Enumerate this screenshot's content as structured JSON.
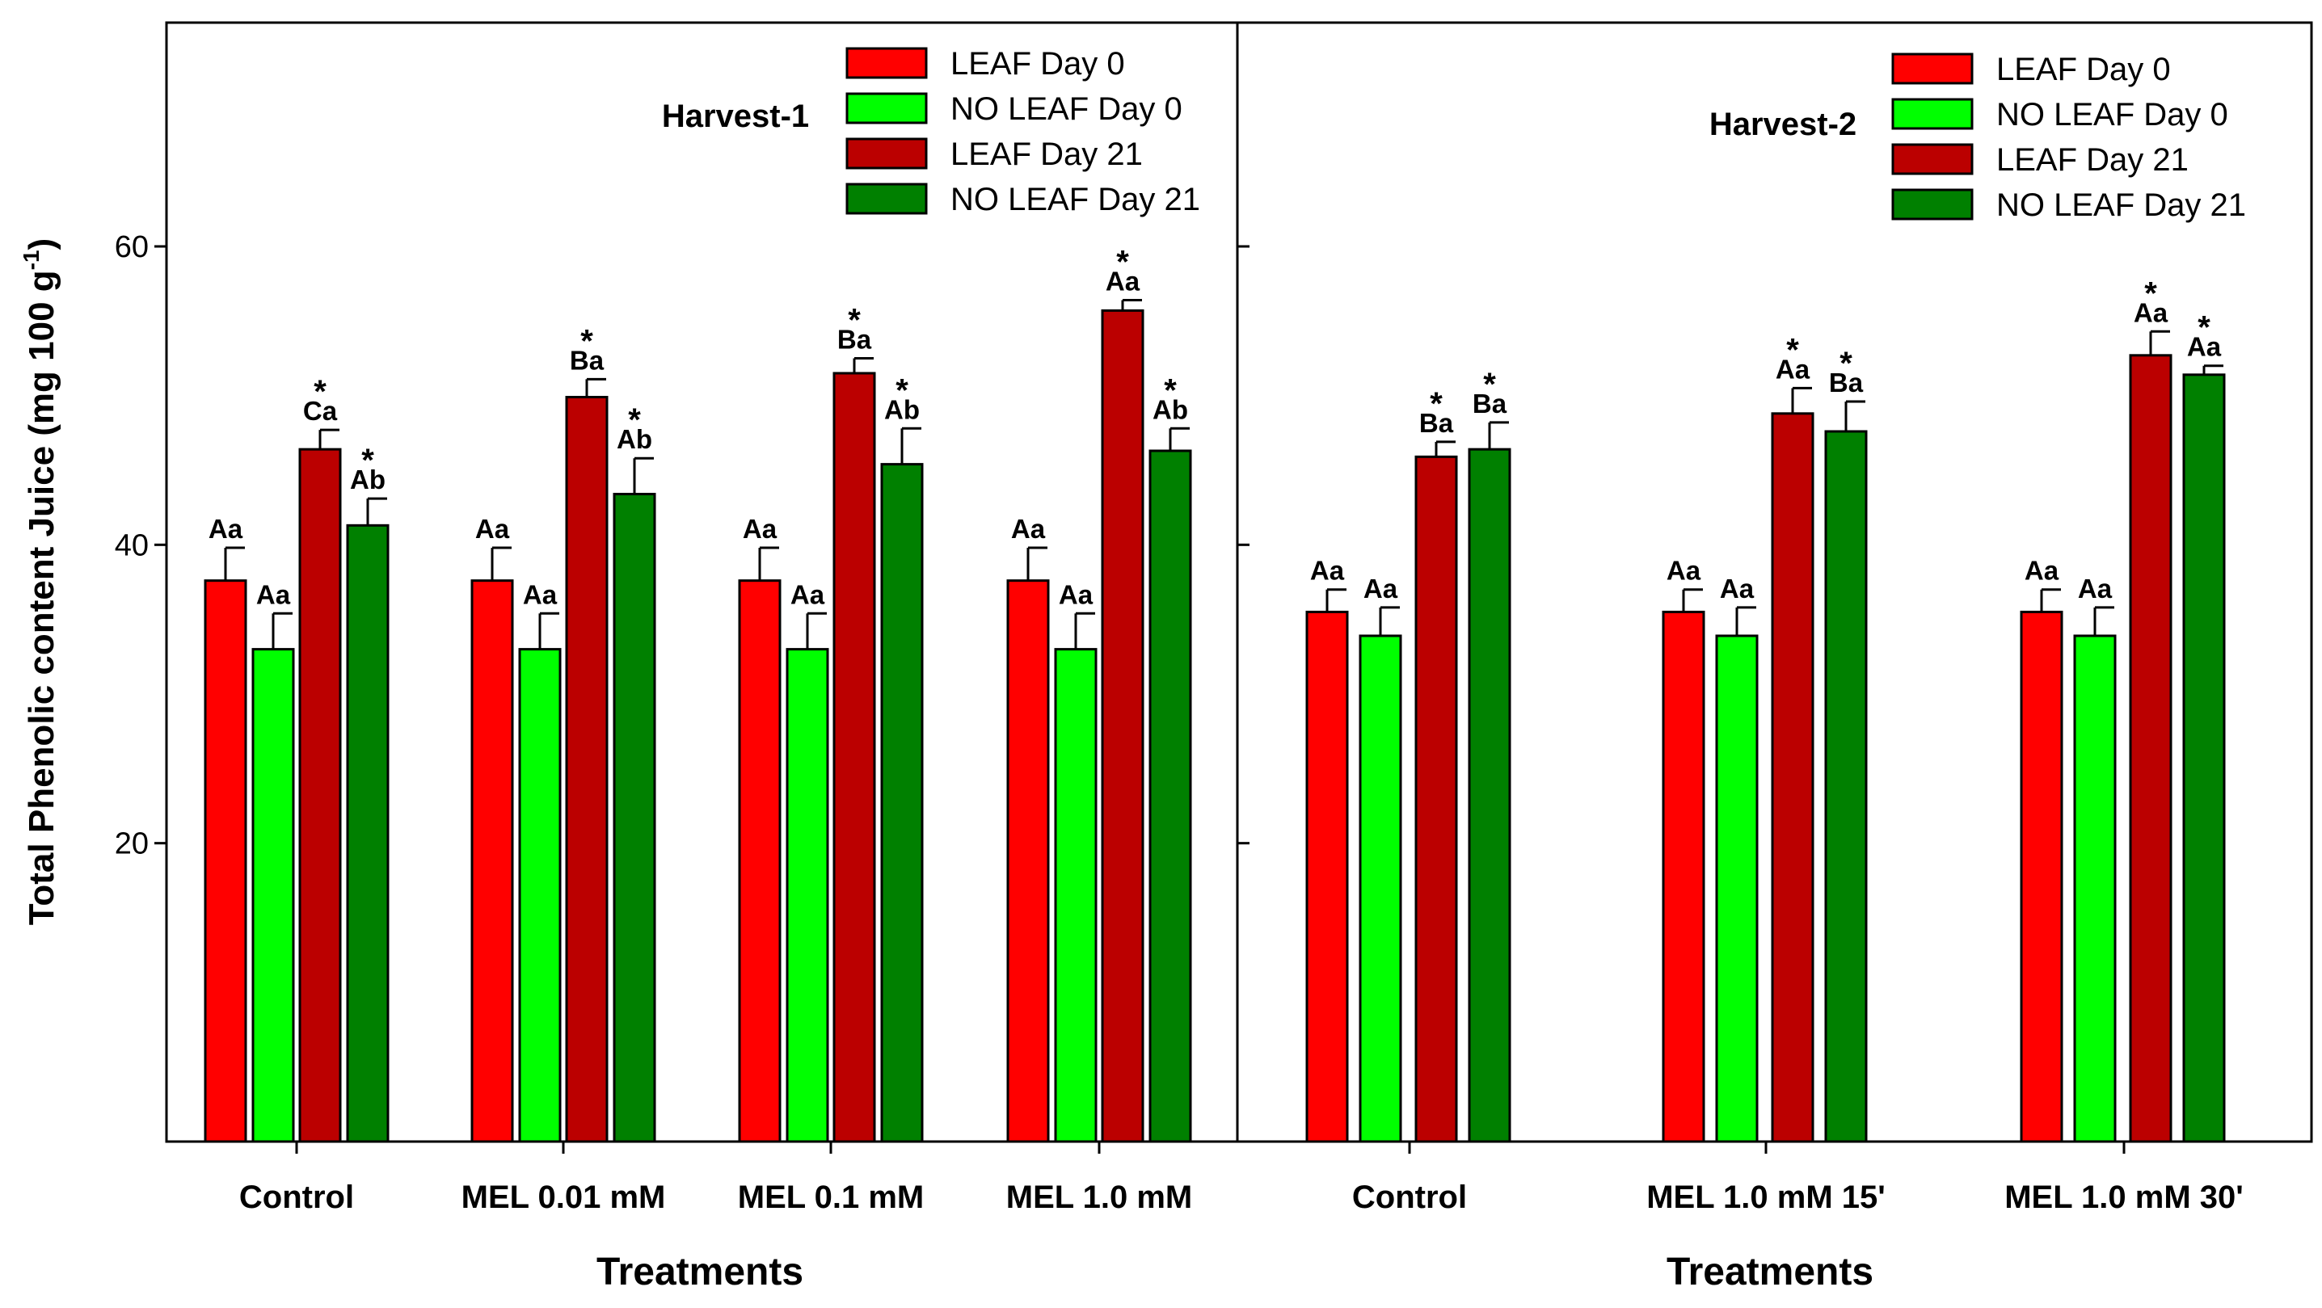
{
  "chart_data": {
    "type": "bar",
    "ylabel": "Total Phenolic content Juice (mg 100 g",
    "ylabel_sup": "-1",
    "ylabel_close": ")",
    "ylim": [
      0,
      75
    ],
    "yticks": [
      "20",
      "40",
      "60"
    ],
    "ytick_values": [
      20,
      40,
      60
    ],
    "grid": false,
    "series_colors": [
      "#ff0000",
      "#00ff00",
      "#bb0000",
      "#008000"
    ],
    "panels": [
      {
        "title": "Harvest-1",
        "xlabel": "Treatments",
        "legend_position": "top-right",
        "categories": [
          "Control",
          "MEL 0.01 mM",
          "MEL 0.1 mM",
          "MEL 1.0 mM"
        ],
        "series": [
          {
            "name": "LEAF Day 0",
            "values": [
              37.6,
              37.6,
              37.6,
              37.6
            ],
            "errors": [
              2.2,
              2.2,
              2.2,
              2.2
            ],
            "labels": [
              "Aa",
              "Aa",
              "Aa",
              "Aa"
            ],
            "stars": [
              false,
              false,
              false,
              false
            ]
          },
          {
            "name": "NO LEAF Day 0",
            "values": [
              33.0,
              33.0,
              33.0,
              33.0
            ],
            "errors": [
              2.4,
              2.4,
              2.4,
              2.4
            ],
            "labels": [
              "Aa",
              "Aa",
              "Aa",
              "Aa"
            ],
            "stars": [
              false,
              false,
              false,
              false
            ]
          },
          {
            "name": "LEAF Day 21",
            "values": [
              46.4,
              49.9,
              51.5,
              55.7
            ],
            "errors": [
              1.3,
              1.2,
              1.0,
              0.7
            ],
            "labels": [
              "Ca",
              "Ba",
              "Ba",
              "Aa"
            ],
            "stars": [
              true,
              true,
              true,
              true
            ]
          },
          {
            "name": "NO LEAF Day 21",
            "values": [
              41.3,
              43.4,
              45.4,
              46.3
            ],
            "errors": [
              1.8,
              2.4,
              2.4,
              1.5
            ],
            "labels": [
              "Ab",
              "Ab",
              "Ab",
              "Ab"
            ],
            "stars": [
              true,
              true,
              true,
              true
            ]
          }
        ]
      },
      {
        "title": "Harvest-2",
        "xlabel": "Treatments",
        "legend_position": "top-right",
        "categories": [
          "Control",
          "MEL 1.0  mM 15'",
          "MEL 1.0 mM 30'"
        ],
        "series": [
          {
            "name": "LEAF Day 0",
            "values": [
              35.5,
              35.5,
              35.5
            ],
            "errors": [
              1.5,
              1.5,
              1.5
            ],
            "labels": [
              "Aa",
              "Aa",
              "Aa"
            ],
            "stars": [
              false,
              false,
              false
            ]
          },
          {
            "name": "NO LEAF Day 0",
            "values": [
              33.9,
              33.9,
              33.9
            ],
            "errors": [
              1.9,
              1.9,
              1.9
            ],
            "labels": [
              "Aa",
              "Aa",
              "Aa"
            ],
            "stars": [
              false,
              false,
              false
            ]
          },
          {
            "name": "LEAF Day 21",
            "values": [
              45.9,
              48.8,
              52.7
            ],
            "errors": [
              1.0,
              1.7,
              1.6
            ],
            "labels": [
              "Ba",
              "Aa",
              "Aa"
            ],
            "stars": [
              true,
              true,
              true
            ]
          },
          {
            "name": "NO LEAF Day 21",
            "values": [
              46.4,
              47.6,
              51.4
            ],
            "errors": [
              1.8,
              2.0,
              0.6
            ],
            "labels": [
              "Ba",
              "Ba",
              "Aa"
            ],
            "stars": [
              true,
              true,
              true
            ]
          }
        ]
      }
    ]
  }
}
